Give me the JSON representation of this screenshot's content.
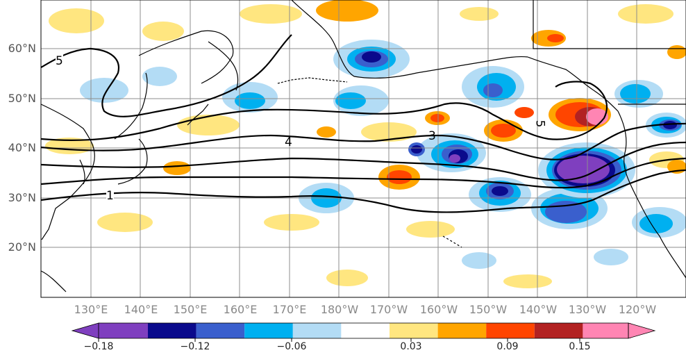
{
  "map": {
    "lat_labels": [
      "60°N",
      "50°N",
      "40°N",
      "30°N",
      "20°N"
    ],
    "lon_labels": [
      "130°E",
      "140°E",
      "150°E",
      "160°E",
      "170°E",
      "180°W",
      "170°W",
      "160°W",
      "150°W",
      "140°W",
      "130°W",
      "120°W"
    ],
    "contour_labels": [
      "5",
      "4",
      "3",
      "1",
      "5"
    ]
  },
  "colorbar": {
    "tick_labels": [
      "−0.18",
      "−0.12",
      "−0.06",
      "0.03",
      "0.09",
      "0.15"
    ],
    "colors": [
      "#7f3fbf",
      "#0a0a8c",
      "#3a5fcd",
      "#00b0f0",
      "#b3dcf5",
      "#ffffff",
      "#ffe680",
      "#ffa500",
      "#ff4500",
      "#b22222",
      "#ff85b3"
    ]
  }
}
